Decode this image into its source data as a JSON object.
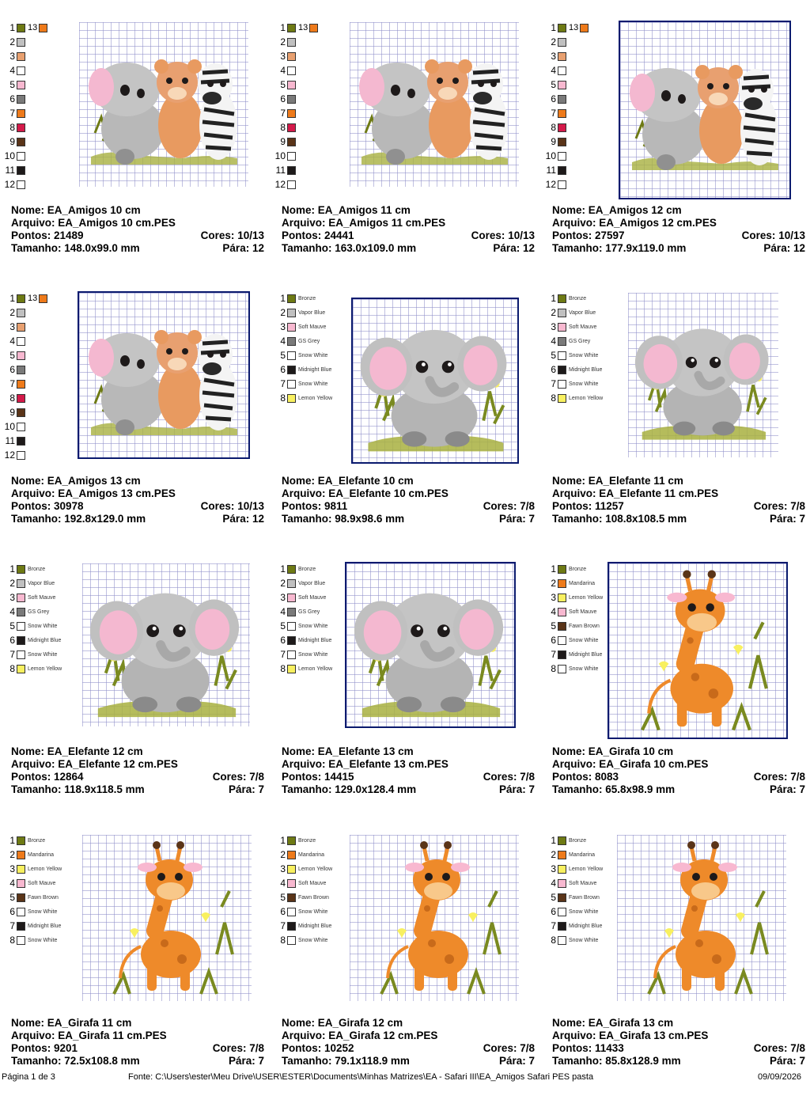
{
  "labels": {
    "nome": "Nome:",
    "arquivo": "Arquivo:",
    "pontos": "Pontos:",
    "cores": "Cores:",
    "tamanho": "Tamanho:",
    "para": "Pára:"
  },
  "palettes": {
    "amigos": [
      {
        "n": "1",
        "color": "#6e7a14",
        "name": ""
      },
      {
        "n": "2",
        "color": "#c0c0c0",
        "name": ""
      },
      {
        "n": "3",
        "color": "#e8a070",
        "name": ""
      },
      {
        "n": "4",
        "color": "#ffffff",
        "name": ""
      },
      {
        "n": "5",
        "color": "#f8b8d0",
        "name": ""
      },
      {
        "n": "6",
        "color": "#7a7a7a",
        "name": ""
      },
      {
        "n": "7",
        "color": "#ee7a1a",
        "name": ""
      },
      {
        "n": "8",
        "color": "#d41a4a",
        "name": ""
      },
      {
        "n": "9",
        "color": "#5a3418",
        "name": ""
      },
      {
        "n": "10",
        "color": "#ffffff",
        "name": ""
      },
      {
        "n": "11",
        "color": "#1e1a1a",
        "name": ""
      },
      {
        "n": "12",
        "color": "#ffffff",
        "name": ""
      }
    ],
    "amigos_extra": {
      "n": "13",
      "color": "#ee7a1a"
    },
    "elefante": [
      {
        "n": "1",
        "color": "#6e7a14",
        "name": "Bronze"
      },
      {
        "n": "2",
        "color": "#c0c0c0",
        "name": "Vapor Blue"
      },
      {
        "n": "3",
        "color": "#f8b8d0",
        "name": "Soft Mauve"
      },
      {
        "n": "4",
        "color": "#7a7a7a",
        "name": "GS Grey"
      },
      {
        "n": "5",
        "color": "#ffffff",
        "name": "Snow White"
      },
      {
        "n": "6",
        "color": "#1e1a1a",
        "name": "Midnight Blue"
      },
      {
        "n": "7",
        "color": "#ffffff",
        "name": "Snow White"
      },
      {
        "n": "8",
        "color": "#f8f060",
        "name": "Lemon Yellow"
      }
    ],
    "girafa": [
      {
        "n": "1",
        "color": "#6e7a14",
        "name": "Bronze"
      },
      {
        "n": "2",
        "color": "#ee7a1a",
        "name": "Mandarina"
      },
      {
        "n": "3",
        "color": "#f8f060",
        "name": "Lemon Yellow"
      },
      {
        "n": "4",
        "color": "#f8b8d0",
        "name": "Soft Mauve"
      },
      {
        "n": "5",
        "color": "#5a3418",
        "name": "Fawn Brown"
      },
      {
        "n": "6",
        "color": "#ffffff",
        "name": "Snow White"
      },
      {
        "n": "7",
        "color": "#1e1a1a",
        "name": "Midnight Blue"
      },
      {
        "n": "8",
        "color": "#ffffff",
        "name": "Snow White"
      }
    ]
  },
  "designs": [
    {
      "nome": "EA_Amigos 10 cm",
      "arquivo": "EA_Amigos 10 cm.PES",
      "pontos": "21489",
      "cores": "10/13",
      "tamanho": "148.0x99.0 mm",
      "para": "12",
      "kind": "amigos",
      "hoop": false
    },
    {
      "nome": "EA_Amigos 11 cm",
      "arquivo": "EA_Amigos 11 cm.PES",
      "pontos": "24441",
      "cores": "10/13",
      "tamanho": "163.0x109.0 mm",
      "para": "12",
      "kind": "amigos",
      "hoop": false
    },
    {
      "nome": "EA_Amigos 12 cm",
      "arquivo": "EA_Amigos 12 cm.PES",
      "pontos": "27597",
      "cores": "10/13",
      "tamanho": "177.9x119.0 mm",
      "para": "12",
      "kind": "amigos",
      "hoop": true
    },
    {
      "nome": "EA_Amigos 13 cm",
      "arquivo": "EA_Amigos 13 cm.PES",
      "pontos": "30978",
      "cores": "10/13",
      "tamanho": "192.8x129.0 mm",
      "para": "12",
      "kind": "amigos",
      "hoop": true
    },
    {
      "nome": "EA_Elefante 10 cm",
      "arquivo": "EA_Elefante 10 cm.PES",
      "pontos": "9811",
      "cores": "7/8",
      "tamanho": "98.9x98.6 mm",
      "para": "7",
      "kind": "elefante",
      "hoop": true
    },
    {
      "nome": "EA_Elefante 11 cm",
      "arquivo": "EA_Elefante 11 cm.PES",
      "pontos": "11257",
      "cores": "7/8",
      "tamanho": "108.8x108.5 mm",
      "para": "7",
      "kind": "elefante",
      "hoop": false
    },
    {
      "nome": "EA_Elefante 12 cm",
      "arquivo": "EA_Elefante 12 cm.PES",
      "pontos": "12864",
      "cores": "7/8",
      "tamanho": "118.9x118.5 mm",
      "para": "7",
      "kind": "elefante",
      "hoop": false
    },
    {
      "nome": "EA_Elefante 13 cm",
      "arquivo": "EA_Elefante 13 cm.PES",
      "pontos": "14415",
      "cores": "7/8",
      "tamanho": "129.0x128.4 mm",
      "para": "7",
      "kind": "elefante",
      "hoop": true
    },
    {
      "nome": "EA_Girafa 10 cm",
      "arquivo": "EA_Girafa 10 cm.PES",
      "pontos": "8083",
      "cores": "7/8",
      "tamanho": "65.8x98.9 mm",
      "para": "7",
      "kind": "girafa",
      "hoop": true
    },
    {
      "nome": "EA_Girafa 11 cm",
      "arquivo": "EA_Girafa 11 cm.PES",
      "pontos": "9201",
      "cores": "7/8",
      "tamanho": "72.5x108.8 mm",
      "para": "7",
      "kind": "girafa",
      "hoop": false
    },
    {
      "nome": "EA_Girafa 12 cm",
      "arquivo": "EA_Girafa 12 cm.PES",
      "pontos": "10252",
      "cores": "7/8",
      "tamanho": "79.1x118.9 mm",
      "para": "7",
      "kind": "girafa",
      "hoop": false
    },
    {
      "nome": "EA_Girafa 13 cm",
      "arquivo": "EA_Girafa 13 cm.PES",
      "pontos": "11433",
      "cores": "7/8",
      "tamanho": "85.8x128.9 mm",
      "para": "7",
      "kind": "girafa",
      "hoop": false
    }
  ],
  "footer": {
    "page": "Página 1 de 3",
    "source": "Fonte: C:\\Users\\ester\\Meu Drive\\USER\\ESTER\\Documents\\Minhas Matrizes\\EA - Safari III\\EA_Amigos Safari PES pasta",
    "date": "09/09/2026"
  }
}
